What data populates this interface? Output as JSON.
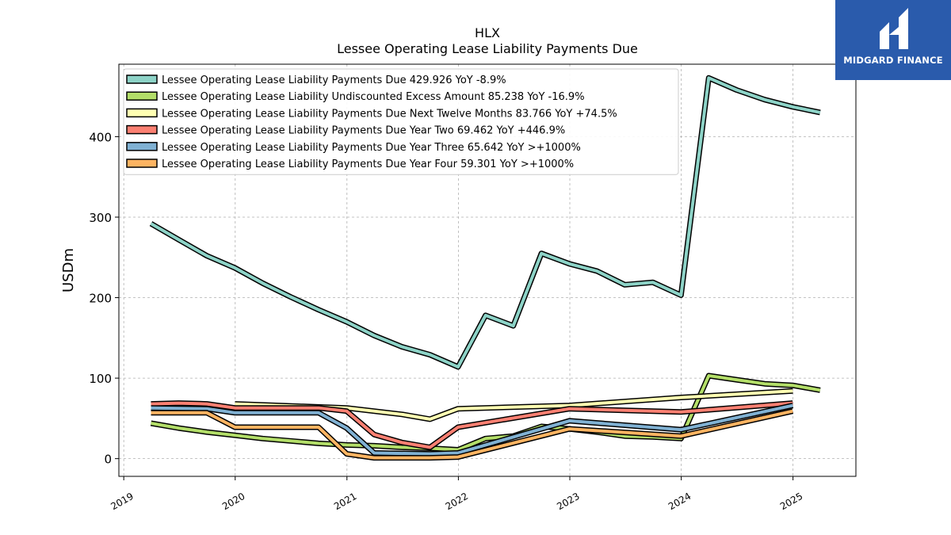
{
  "brand": {
    "logo_text": "MIDGARD FINANCE",
    "logo_color": "#2a5bac"
  },
  "chart_data": {
    "type": "line",
    "title": "HLX",
    "subtitle": "Lessee Operating Lease Liability Payments Due",
    "ylabel": "USDm",
    "xlabel": "",
    "ylim": [
      -22,
      490
    ],
    "xlim": [
      "2018-12-16",
      "2025-07-26"
    ],
    "x_ticks": [
      "2019",
      "2020",
      "2021",
      "2022",
      "2023",
      "2024",
      "2025"
    ],
    "y_ticks": [
      0,
      100,
      200,
      300,
      400
    ],
    "grid": true,
    "legend_position": "top-left",
    "series": [
      {
        "name": "Lessee Operating Lease Liability Payments Due",
        "legend": "Lessee Operating Lease Liability Payments Due  429.926 YoY -8.9%",
        "color": "#8dd3c7",
        "x": [
          "2019-03-31",
          "2019-06-30",
          "2019-09-30",
          "2019-12-31",
          "2020-03-31",
          "2020-06-30",
          "2020-09-30",
          "2020-12-31",
          "2021-03-31",
          "2021-06-30",
          "2021-09-30",
          "2021-12-31",
          "2022-03-31",
          "2022-06-30",
          "2022-09-30",
          "2022-12-31",
          "2023-03-31",
          "2023-06-30",
          "2023-09-30",
          "2023-12-31",
          "2024-03-31",
          "2024-06-30",
          "2024-09-30",
          "2024-12-31",
          "2025-03-31"
        ],
        "values": [
          292,
          272,
          252,
          237,
          218,
          201,
          185,
          170,
          153,
          139,
          129,
          114,
          178,
          165,
          255,
          242,
          233,
          216,
          219,
          203,
          473,
          458,
          446,
          437,
          430
        ]
      },
      {
        "name": "Lessee Operating Lease Liability Undiscounted Excess Amount",
        "legend": "Lessee Operating Lease Liability Undiscounted Excess Amount  85.238 YoY -16.9%",
        "color": "#b3de69",
        "x": [
          "2019-03-31",
          "2019-06-30",
          "2019-09-30",
          "2019-12-31",
          "2020-03-31",
          "2020-06-30",
          "2020-09-30",
          "2020-12-31",
          "2021-03-31",
          "2021-06-30",
          "2021-09-30",
          "2021-12-31",
          "2022-03-31",
          "2022-06-30",
          "2022-09-30",
          "2022-12-31",
          "2023-03-31",
          "2023-06-30",
          "2023-09-30",
          "2023-12-31",
          "2024-03-31",
          "2024-06-30",
          "2024-09-30",
          "2024-12-31",
          "2025-03-31"
        ],
        "values": [
          44,
          38,
          33,
          29,
          25,
          22,
          19,
          17,
          16,
          14,
          13,
          11,
          25,
          28,
          40,
          37,
          33,
          28,
          27,
          25,
          103,
          98,
          93,
          91,
          85
        ]
      },
      {
        "name": "Lessee Operating Lease Liability Payments Due Next Twelve Months",
        "legend": "Lessee Operating Lease Liability Payments Due Next Twelve Months  83.766 YoY +74.5%",
        "color": "#ffffb3",
        "x": [
          "2019-12-31",
          "2020-12-31",
          "2021-06-30",
          "2021-09-30",
          "2021-12-31",
          "2022-12-31",
          "2023-12-31",
          "2024-12-31"
        ],
        "values": [
          68,
          63,
          55,
          49,
          62,
          66,
          76,
          84
        ]
      },
      {
        "name": "Lessee Operating Lease Liability Payments Due Year Two",
        "legend": "Lessee Operating Lease Liability Payments Due Year Two  69.462 YoY +446.9%",
        "color": "#fb8072",
        "x": [
          "2019-03-31",
          "2019-06-30",
          "2019-09-30",
          "2019-12-31",
          "2020-09-30",
          "2020-12-31",
          "2021-03-31",
          "2021-06-30",
          "2021-09-30",
          "2021-12-31",
          "2022-12-31",
          "2023-12-31",
          "2024-12-31"
        ],
        "values": [
          68,
          69,
          68,
          63,
          63,
          59,
          30,
          20,
          14,
          39,
          62,
          58,
          69
        ]
      },
      {
        "name": "Lessee Operating Lease Liability Payments Due Year Three",
        "legend": "Lessee Operating Lease Liability Payments Due Year Three  65.642 YoY >+1000%",
        "color": "#80b1d3",
        "x": [
          "2019-03-31",
          "2019-09-30",
          "2019-12-31",
          "2020-09-30",
          "2020-12-31",
          "2021-03-31",
          "2021-09-30",
          "2021-12-31",
          "2022-12-31",
          "2023-12-31",
          "2024-12-31"
        ],
        "values": [
          63,
          62,
          57,
          57,
          38,
          7,
          6,
          7,
          47,
          36,
          66
        ]
      },
      {
        "name": "Lessee Operating Lease Liability Payments Due Year Four",
        "legend": "Lessee Operating Lease Liability Payments Due Year Four  59.301 YoY >+1000%",
        "color": "#fdb462",
        "x": [
          "2019-03-31",
          "2019-09-30",
          "2019-12-31",
          "2020-09-30",
          "2020-12-31",
          "2021-03-31",
          "2021-09-30",
          "2021-12-31",
          "2022-12-31",
          "2023-12-31",
          "2024-12-31"
        ],
        "values": [
          57,
          57,
          39,
          39,
          6,
          1,
          1,
          2,
          37,
          28,
          59
        ]
      }
    ]
  }
}
